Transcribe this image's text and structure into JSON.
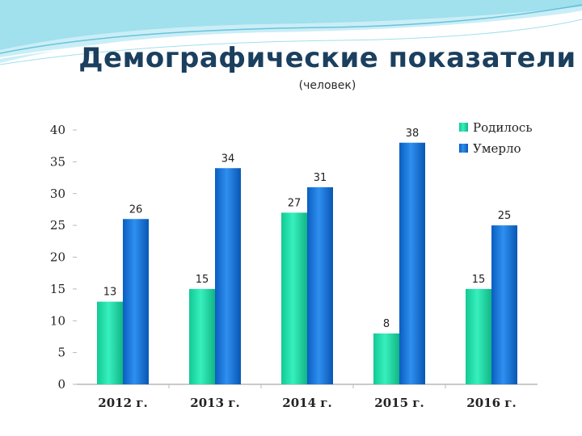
{
  "title": "Демографические показатели",
  "subtitle": "(человек)",
  "colors": {
    "born": "#1fe0a8",
    "born_light": "#5ff5c8",
    "died": "#0f6fd6",
    "died_light": "#3a9bf0",
    "wave": "#7fd6ea"
  },
  "chart_data": {
    "type": "bar",
    "title": "Демографические показатели",
    "subtitle": "(человек)",
    "categories": [
      "2012 г.",
      "2013 г.",
      "2014 г.",
      "2015 г.",
      "2016 г."
    ],
    "series": [
      {
        "name": "Родилось",
        "values": [
          13,
          15,
          27,
          8,
          15
        ]
      },
      {
        "name": "Умерло",
        "values": [
          26,
          34,
          31,
          38,
          25
        ]
      }
    ],
    "ylim": [
      0,
      40
    ],
    "yticks": [
      0,
      5,
      10,
      15,
      20,
      25,
      30,
      35,
      40
    ],
    "xlabel": "",
    "ylabel": "",
    "legend": "top-right",
    "grid": false
  }
}
